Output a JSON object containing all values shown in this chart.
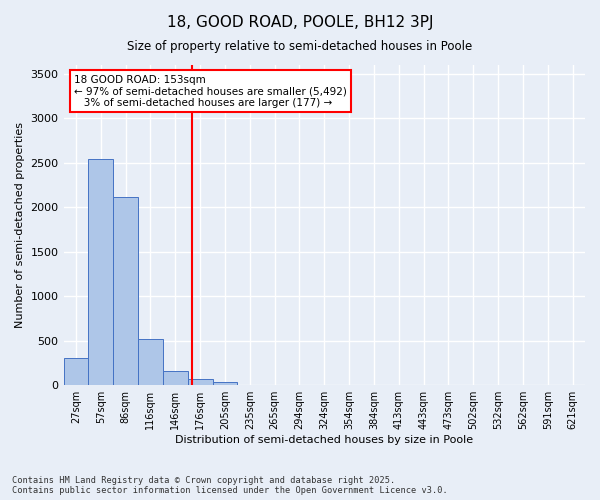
{
  "title": "18, GOOD ROAD, POOLE, BH12 3PJ",
  "subtitle": "Size of property relative to semi-detached houses in Poole",
  "xlabel": "Distribution of semi-detached houses by size in Poole",
  "ylabel": "Number of semi-detached properties",
  "categories": [
    "27sqm",
    "57sqm",
    "86sqm",
    "116sqm",
    "146sqm",
    "176sqm",
    "205sqm",
    "235sqm",
    "265sqm",
    "294sqm",
    "324sqm",
    "354sqm",
    "384sqm",
    "413sqm",
    "443sqm",
    "473sqm",
    "502sqm",
    "532sqm",
    "562sqm",
    "591sqm",
    "621sqm"
  ],
  "values": [
    310,
    2545,
    2120,
    515,
    155,
    70,
    40,
    0,
    0,
    0,
    0,
    0,
    0,
    0,
    0,
    0,
    0,
    0,
    0,
    0,
    0
  ],
  "bar_color": "#aec6e8",
  "bar_edge_color": "#4472c4",
  "property_line_x": 4.67,
  "property_line_label": "18 GOOD ROAD: 153sqm",
  "pct_smaller": "97% of semi-detached houses are smaller (5,492)",
  "pct_larger": "3% of semi-detached houses are larger (177)",
  "ylim": [
    0,
    3600
  ],
  "yticks": [
    0,
    500,
    1000,
    1500,
    2000,
    2500,
    3000,
    3500
  ],
  "background_color": "#e8eef7",
  "grid_color": "#ffffff",
  "footer_line1": "Contains HM Land Registry data © Crown copyright and database right 2025.",
  "footer_line2": "Contains public sector information licensed under the Open Government Licence v3.0."
}
